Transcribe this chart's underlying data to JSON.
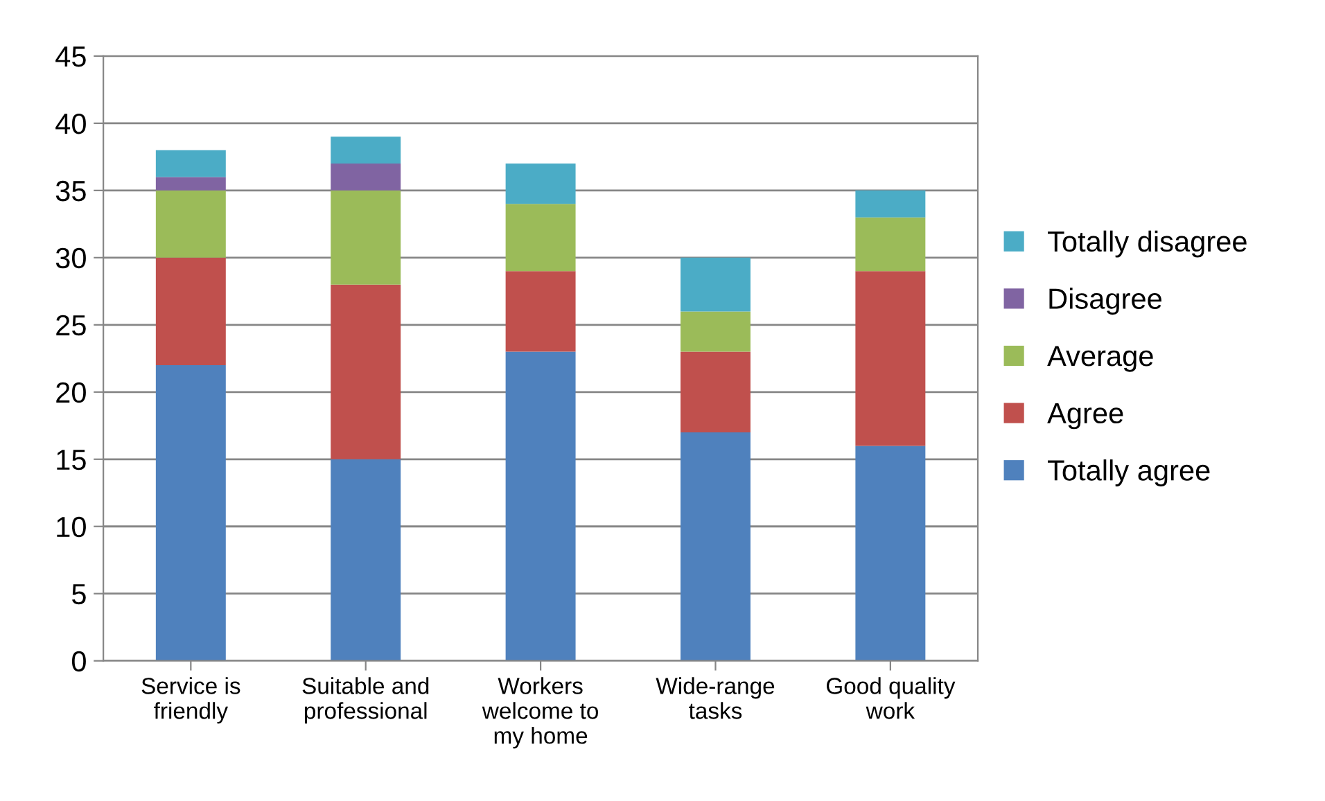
{
  "chart_data": {
    "type": "bar",
    "stacked": true,
    "categories": [
      "Service is\nfriendly",
      "Suitable and\nprofessional",
      "Workers\nwelcome to\nmy home",
      "Wide-range\ntasks",
      "Good quality\nwork"
    ],
    "series": [
      {
        "name": "Totally agree",
        "color": "#4f81bd",
        "values": [
          22,
          15,
          23,
          17,
          16
        ]
      },
      {
        "name": "Agree",
        "color": "#c0504d",
        "values": [
          8,
          13,
          6,
          6,
          13
        ]
      },
      {
        "name": "Average",
        "color": "#9bbb59",
        "values": [
          5,
          7,
          5,
          3,
          4
        ]
      },
      {
        "name": "Disagree",
        "color": "#8064a2",
        "values": [
          1,
          2,
          0,
          0,
          0
        ]
      },
      {
        "name": "Totally disagree",
        "color": "#4bacc6",
        "values": [
          2,
          2,
          3,
          4,
          2
        ]
      }
    ],
    "ylim": [
      0,
      45
    ],
    "yticks": [
      0,
      5,
      10,
      15,
      20,
      25,
      30,
      35,
      40,
      45
    ],
    "grid": "y",
    "legend": "right"
  }
}
